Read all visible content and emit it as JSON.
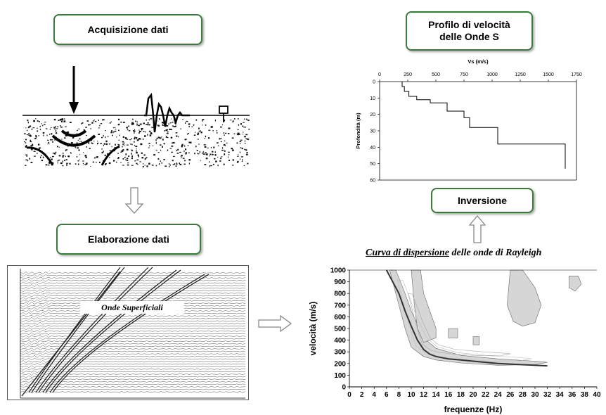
{
  "boxes": {
    "acquisizione": "Acquisizione dati",
    "elaborazione": "Elaborazione dati",
    "profilo_line1": "Profilo di velocità",
    "profilo_line2": "delle Onde S",
    "inversione": "Inversione"
  },
  "seismogram": {
    "label": "Onde Superficiali"
  },
  "dispersion": {
    "title_underlined": "Curva di dispersione",
    "title_rest": " delle onde di Rayleigh"
  },
  "chart_data": [
    {
      "type": "line",
      "title": "",
      "xlabel": "Vs (m/s)",
      "ylabel": "Profondità (m)",
      "xlim": [
        0,
        1750
      ],
      "ylim": [
        60,
        0
      ],
      "xticks": [
        0,
        250,
        500,
        750,
        1000,
        1250,
        1500,
        1750
      ],
      "yticks": [
        0,
        10,
        20,
        30,
        40,
        50,
        60
      ],
      "x_axis_position": "top",
      "series": [
        {
          "x": [
            200,
            200,
            220,
            220,
            260,
            260,
            330,
            330,
            450,
            450,
            600,
            600,
            750,
            750,
            800,
            800,
            1050,
            1050,
            1650,
            1650
          ],
          "y": [
            0,
            3,
            3,
            6,
            6,
            9,
            9,
            11,
            11,
            13,
            13,
            18,
            18,
            22,
            22,
            28,
            28,
            38,
            38,
            53
          ]
        }
      ]
    },
    {
      "type": "heatmap",
      "title": "",
      "xlabel": "frequenze (Hz)",
      "ylabel": "velocità (m/s)",
      "xlim": [
        0,
        40
      ],
      "ylim": [
        0,
        1000
      ],
      "xticks": [
        0,
        2,
        4,
        6,
        8,
        10,
        12,
        14,
        16,
        18,
        20,
        22,
        24,
        26,
        28,
        30,
        32,
        34,
        36,
        38,
        40
      ],
      "xtick_labels": [
        "0",
        "2",
        "4",
        "6",
        "8",
        "10",
        "12",
        "14",
        "16",
        "18",
        "20",
        "22",
        "24",
        "26",
        "28",
        "30",
        "32",
        "34",
        "36",
        "38",
        "40"
      ],
      "yticks": [
        0,
        100,
        200,
        300,
        400,
        500,
        600,
        700,
        800,
        900,
        1000
      ],
      "dispersion_curve": {
        "x": [
          6,
          8,
          9,
          10,
          11,
          12,
          13,
          14,
          16,
          18,
          20,
          22,
          24,
          26,
          28,
          30,
          32
        ],
        "y": [
          1000,
          800,
          650,
          520,
          400,
          320,
          280,
          260,
          240,
          230,
          220,
          210,
          200,
          195,
          190,
          185,
          180
        ]
      }
    }
  ]
}
